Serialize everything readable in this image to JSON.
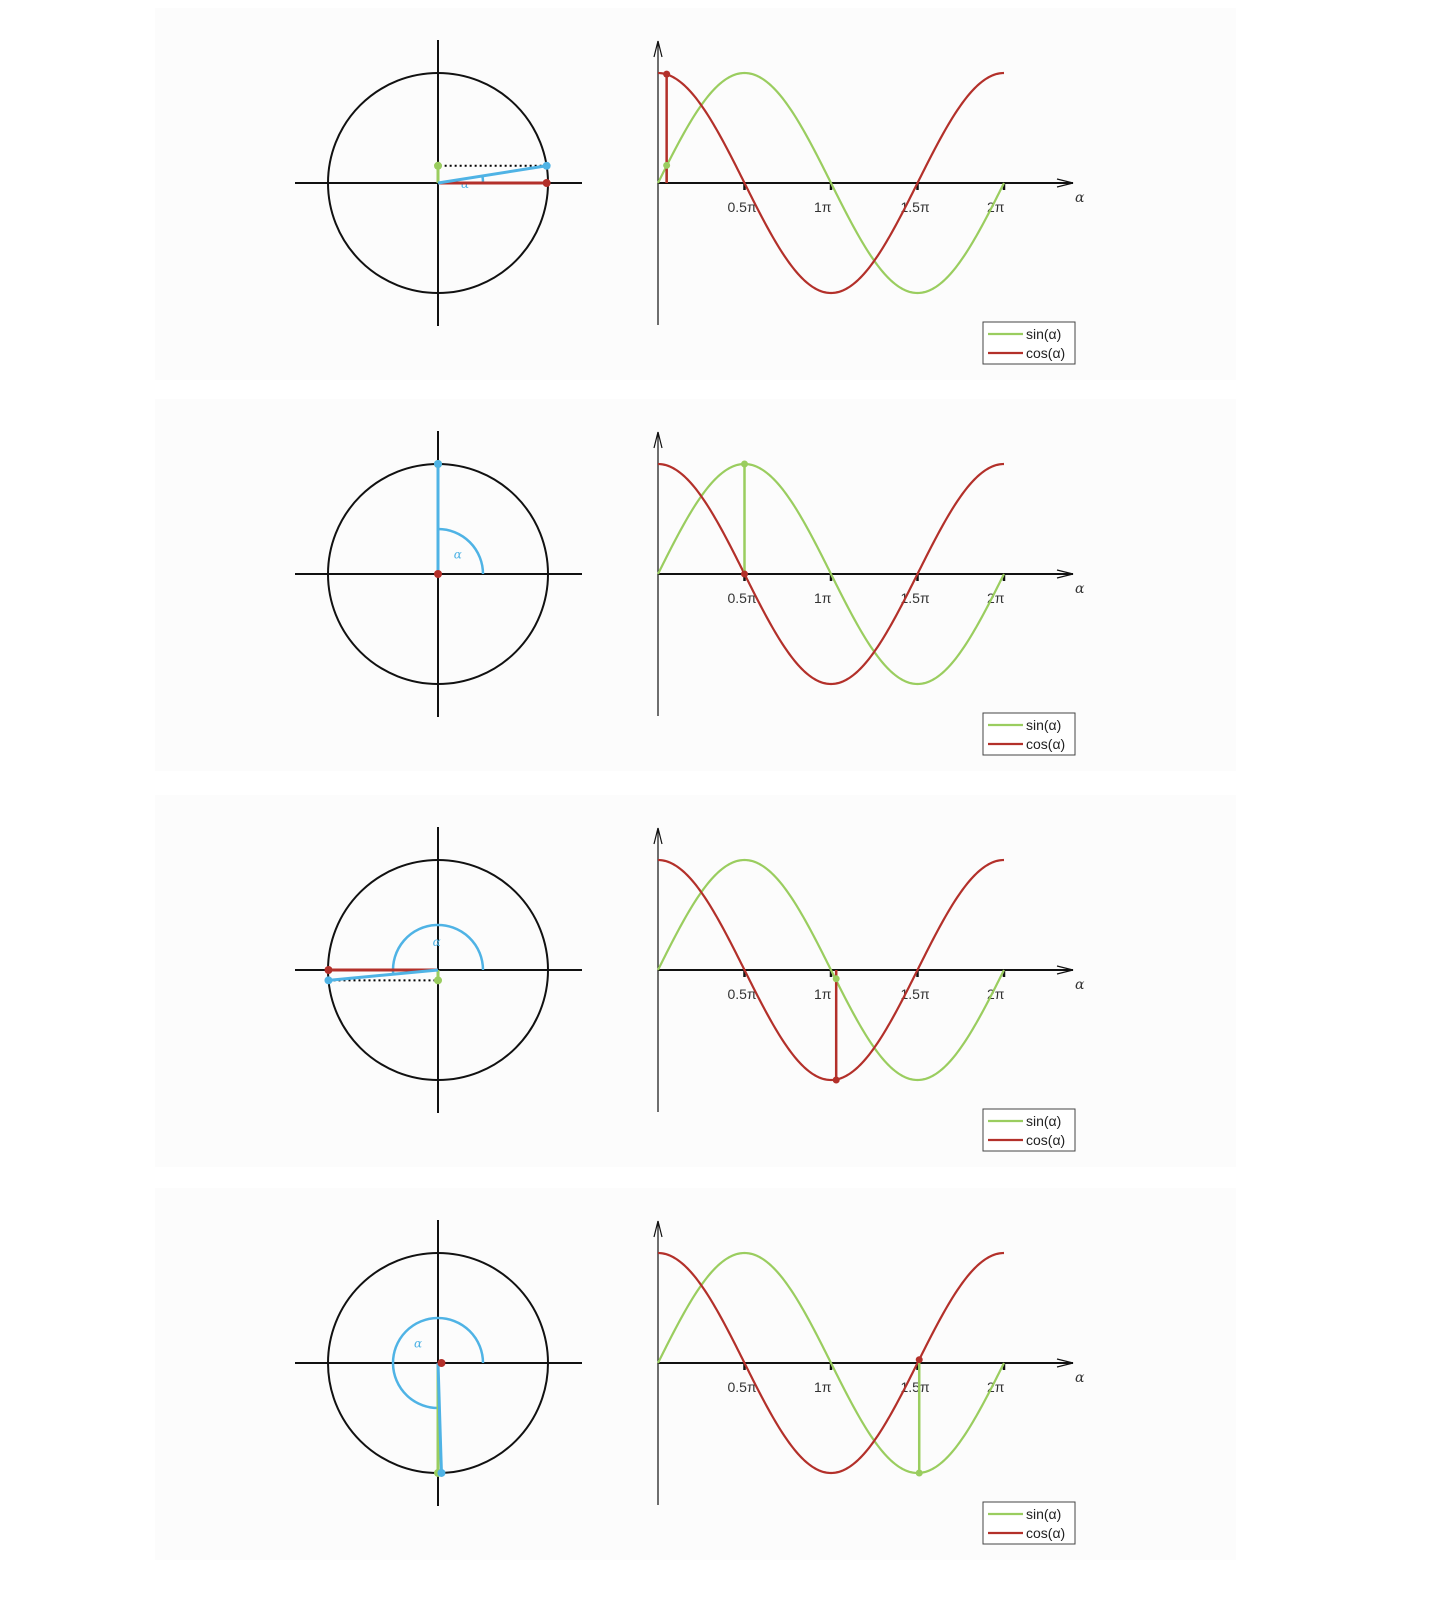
{
  "colors": {
    "sin": "#9ACD5F",
    "cos": "#B3302A",
    "radius": "#4FB3E5",
    "axis": "#111111",
    "panel_bg": "#fcfcfc"
  },
  "alpha_symbol": "α",
  "chart_data": [
    {
      "type": "line",
      "alpha_pi": 0.05,
      "x_ticks": [
        0.5,
        1,
        1.5,
        2
      ],
      "x_tick_labels": [
        "0.5π",
        "1π",
        "1.5π",
        "2π"
      ],
      "xlabel": "α",
      "xlim_pi": [
        0,
        2
      ],
      "ylim": [
        -1,
        1
      ],
      "legend": [
        "sin(α)",
        "cos(α)"
      ],
      "legend_position": "bottom-right",
      "series": [
        {
          "name": "sin(α)",
          "function": "sin",
          "x_pi": [
            0,
            0.25,
            0.5,
            0.75,
            1,
            1.25,
            1.5,
            1.75,
            2
          ],
          "values": [
            0,
            0.707,
            1,
            0.707,
            0,
            -0.707,
            -1,
            -0.707,
            0
          ]
        },
        {
          "name": "cos(α)",
          "function": "cos",
          "x_pi": [
            0,
            0.25,
            0.5,
            0.75,
            1,
            1.25,
            1.5,
            1.75,
            2
          ],
          "values": [
            1,
            0.707,
            0,
            -0.707,
            -1,
            -0.707,
            0,
            0.707,
            1
          ]
        }
      ],
      "highlight": {
        "sin": 0.16,
        "cos": 0.99
      }
    },
    {
      "type": "line",
      "alpha_pi": 0.5,
      "x_ticks": [
        0.5,
        1,
        1.5,
        2
      ],
      "x_tick_labels": [
        "0.5π",
        "1π",
        "1.5π",
        "2π"
      ],
      "xlabel": "α",
      "xlim_pi": [
        0,
        2
      ],
      "ylim": [
        -1,
        1
      ],
      "legend": [
        "sin(α)",
        "cos(α)"
      ],
      "legend_position": "bottom-right",
      "series": [
        {
          "name": "sin(α)",
          "function": "sin",
          "x_pi": [
            0,
            0.25,
            0.5,
            0.75,
            1,
            1.25,
            1.5,
            1.75,
            2
          ],
          "values": [
            0,
            0.707,
            1,
            0.707,
            0,
            -0.707,
            -1,
            -0.707,
            0
          ]
        },
        {
          "name": "cos(α)",
          "function": "cos",
          "x_pi": [
            0,
            0.25,
            0.5,
            0.75,
            1,
            1.25,
            1.5,
            1.75,
            2
          ],
          "values": [
            1,
            0.707,
            0,
            -0.707,
            -1,
            -0.707,
            0,
            0.707,
            1
          ]
        }
      ],
      "highlight": {
        "sin": 1,
        "cos": 0
      }
    },
    {
      "type": "line",
      "alpha_pi": 1.03,
      "x_ticks": [
        0.5,
        1,
        1.5,
        2
      ],
      "x_tick_labels": [
        "0.5π",
        "1π",
        "1.5π",
        "2π"
      ],
      "xlabel": "α",
      "xlim_pi": [
        0,
        2
      ],
      "ylim": [
        -1,
        1
      ],
      "legend": [
        "sin(α)",
        "cos(α)"
      ],
      "legend_position": "bottom-right",
      "series": [
        {
          "name": "sin(α)",
          "function": "sin",
          "x_pi": [
            0,
            0.25,
            0.5,
            0.75,
            1,
            1.25,
            1.5,
            1.75,
            2
          ],
          "values": [
            0,
            0.707,
            1,
            0.707,
            0,
            -0.707,
            -1,
            -0.707,
            0
          ]
        },
        {
          "name": "cos(α)",
          "function": "cos",
          "x_pi": [
            0,
            0.25,
            0.5,
            0.75,
            1,
            1.25,
            1.5,
            1.75,
            2
          ],
          "values": [
            1,
            0.707,
            0,
            -0.707,
            -1,
            -0.707,
            0,
            0.707,
            1
          ]
        }
      ],
      "highlight": {
        "sin": -0.08,
        "cos": -1
      }
    },
    {
      "type": "line",
      "alpha_pi": 1.51,
      "x_ticks": [
        0.5,
        1,
        1.5,
        2
      ],
      "x_tick_labels": [
        "0.5π",
        "1π",
        "1.5π",
        "2π"
      ],
      "xlabel": "α",
      "xlim_pi": [
        0,
        2
      ],
      "ylim": [
        -1,
        1
      ],
      "legend": [
        "sin(α)",
        "cos(α)"
      ],
      "legend_position": "bottom-right",
      "series": [
        {
          "name": "sin(α)",
          "function": "sin",
          "x_pi": [
            0,
            0.25,
            0.5,
            0.75,
            1,
            1.25,
            1.5,
            1.75,
            2
          ],
          "values": [
            0,
            0.707,
            1,
            0.707,
            0,
            -0.707,
            -1,
            -0.707,
            0
          ]
        },
        {
          "name": "cos(α)",
          "function": "cos",
          "x_pi": [
            0,
            0.25,
            0.5,
            0.75,
            1,
            1.25,
            1.5,
            1.75,
            2
          ],
          "values": [
            1,
            0.707,
            0,
            -0.707,
            -1,
            -0.707,
            0,
            0.707,
            1
          ]
        }
      ],
      "highlight": {
        "sin": -1,
        "cos": 0.03
      }
    }
  ]
}
